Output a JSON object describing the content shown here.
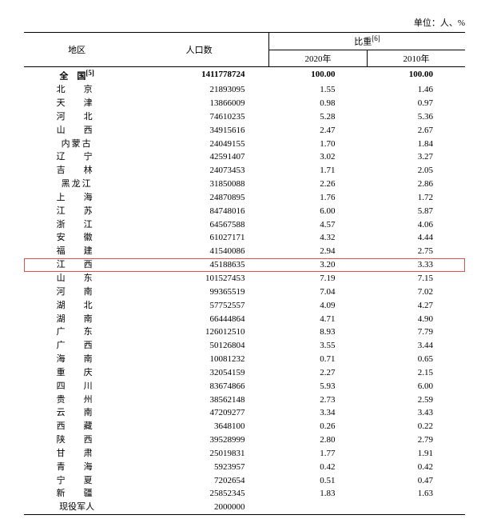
{
  "unit_label": "单位：人、%",
  "headers": {
    "region": "地区",
    "population": "人口数",
    "ratio": "比重",
    "ratio_sup": "[6]",
    "year_2020": "2020年",
    "year_2010": "2010年"
  },
  "national_row": {
    "region": "全　国",
    "region_sup": "[5]",
    "population": "1411778724",
    "r2020": "100.00",
    "r2010": "100.00"
  },
  "rows": [
    {
      "region": "北　京",
      "population": "21893095",
      "r2020": "1.55",
      "r2010": "1.46"
    },
    {
      "region": "天　津",
      "population": "13866009",
      "r2020": "0.98",
      "r2010": "0.97"
    },
    {
      "region": "河　北",
      "population": "74610235",
      "r2020": "5.28",
      "r2010": "5.36"
    },
    {
      "region": "山　西",
      "population": "34915616",
      "r2020": "2.47",
      "r2010": "2.67"
    },
    {
      "region": "内蒙古",
      "population": "24049155",
      "r2020": "1.70",
      "r2010": "1.84",
      "spacing": "semi"
    },
    {
      "region": "辽　宁",
      "population": "42591407",
      "r2020": "3.02",
      "r2010": "3.27"
    },
    {
      "region": "吉　林",
      "population": "24073453",
      "r2020": "1.71",
      "r2010": "2.05"
    },
    {
      "region": "黑龙江",
      "population": "31850088",
      "r2020": "2.26",
      "r2010": "2.86",
      "spacing": "semi"
    },
    {
      "region": "上　海",
      "population": "24870895",
      "r2020": "1.76",
      "r2010": "1.72"
    },
    {
      "region": "江　苏",
      "population": "84748016",
      "r2020": "6.00",
      "r2010": "5.87"
    },
    {
      "region": "浙　江",
      "population": "64567588",
      "r2020": "4.57",
      "r2010": "4.06"
    },
    {
      "region": "安　徽",
      "population": "61027171",
      "r2020": "4.32",
      "r2010": "4.44"
    },
    {
      "region": "福　建",
      "population": "41540086",
      "r2020": "2.94",
      "r2010": "2.75"
    },
    {
      "region": "江　西",
      "population": "45188635",
      "r2020": "3.20",
      "r2010": "3.33",
      "highlight": true
    },
    {
      "region": "山　东",
      "population": "101527453",
      "r2020": "7.19",
      "r2010": "7.15"
    },
    {
      "region": "河　南",
      "population": "99365519",
      "r2020": "7.04",
      "r2010": "7.02"
    },
    {
      "region": "湖　北",
      "population": "57752557",
      "r2020": "4.09",
      "r2010": "4.27"
    },
    {
      "region": "湖　南",
      "population": "66444864",
      "r2020": "4.71",
      "r2010": "4.90"
    },
    {
      "region": "广　东",
      "population": "126012510",
      "r2020": "8.93",
      "r2010": "7.79"
    },
    {
      "region": "广　西",
      "population": "50126804",
      "r2020": "3.55",
      "r2010": "3.44"
    },
    {
      "region": "海　南",
      "population": "10081232",
      "r2020": "0.71",
      "r2010": "0.65"
    },
    {
      "region": "重　庆",
      "population": "32054159",
      "r2020": "2.27",
      "r2010": "2.15"
    },
    {
      "region": "四　川",
      "population": "83674866",
      "r2020": "5.93",
      "r2010": "6.00"
    },
    {
      "region": "贵　州",
      "population": "38562148",
      "r2020": "2.73",
      "r2010": "2.59"
    },
    {
      "region": "云　南",
      "population": "47209277",
      "r2020": "3.34",
      "r2010": "3.43"
    },
    {
      "region": "西　藏",
      "population": "3648100",
      "r2020": "0.26",
      "r2010": "0.22"
    },
    {
      "region": "陕　西",
      "population": "39528999",
      "r2020": "2.80",
      "r2010": "2.79"
    },
    {
      "region": "甘　肃",
      "population": "25019831",
      "r2020": "1.77",
      "r2010": "1.91"
    },
    {
      "region": "青　海",
      "population": "5923957",
      "r2020": "0.42",
      "r2010": "0.42"
    },
    {
      "region": "宁　夏",
      "population": "7202654",
      "r2020": "0.51",
      "r2010": "0.47"
    },
    {
      "region": "新　疆",
      "population": "25852345",
      "r2020": "1.83",
      "r2010": "1.63"
    },
    {
      "region": "现役军人",
      "population": "2000000",
      "r2020": "",
      "r2010": "",
      "spacing": "tight"
    }
  ]
}
